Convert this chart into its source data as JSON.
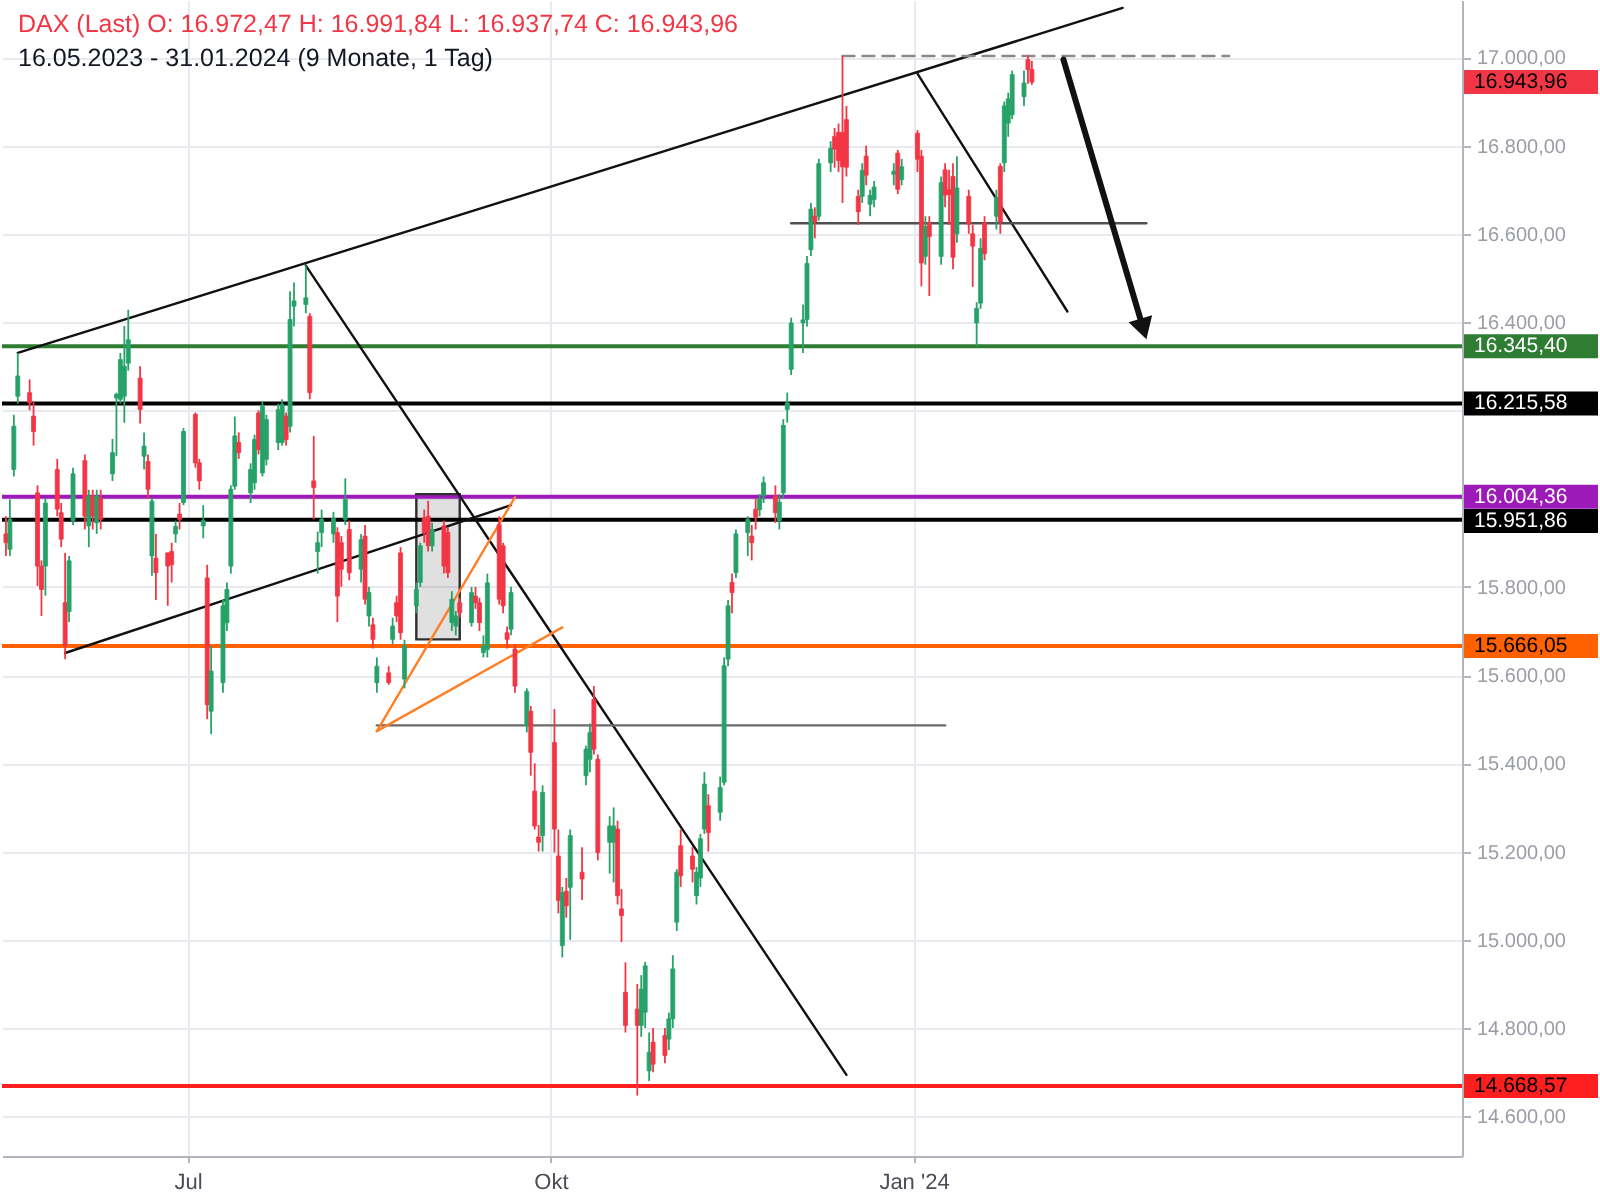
{
  "chart_data": {
    "type": "candlestick",
    "title": "DAX (Last)  O: 16.972,47  H: 16.991,84  L: 16.937,74  C: 16.943,96",
    "subtitle": "16.05.2023 - 31.01.2024  (9 Monate, 1 Tag)",
    "x": [
      "2023-05-16",
      "2023-05-17",
      "2023-05-18",
      "2023-05-19",
      "2023-05-22",
      "2023-05-23",
      "2023-05-24",
      "2023-05-25",
      "2023-05-26",
      "2023-05-29",
      "2023-05-30",
      "2023-05-31",
      "2023-06-01",
      "2023-06-02",
      "2023-06-05",
      "2023-06-06",
      "2023-06-07",
      "2023-06-08",
      "2023-06-09",
      "2023-06-12",
      "2023-06-13",
      "2023-06-14",
      "2023-06-15",
      "2023-06-16",
      "2023-06-19",
      "2023-06-20",
      "2023-06-21",
      "2023-06-22",
      "2023-06-23",
      "2023-06-26",
      "2023-06-27",
      "2023-06-28",
      "2023-06-29",
      "2023-06-30",
      "2023-07-03",
      "2023-07-04",
      "2023-07-05",
      "2023-07-06",
      "2023-07-07",
      "2023-07-10",
      "2023-07-11",
      "2023-07-12",
      "2023-07-13",
      "2023-07-14",
      "2023-07-17",
      "2023-07-18",
      "2023-07-19",
      "2023-07-20",
      "2023-07-21",
      "2023-07-24",
      "2023-07-25",
      "2023-07-26",
      "2023-07-27",
      "2023-07-28",
      "2023-07-31",
      "2023-08-01",
      "2023-08-02",
      "2023-08-03",
      "2023-08-04",
      "2023-08-07",
      "2023-08-08",
      "2023-08-09",
      "2023-08-10",
      "2023-08-11",
      "2023-08-14",
      "2023-08-15",
      "2023-08-16",
      "2023-08-17",
      "2023-08-18",
      "2023-08-21",
      "2023-08-22",
      "2023-08-23",
      "2023-08-24",
      "2023-08-25",
      "2023-08-28",
      "2023-08-29",
      "2023-08-30",
      "2023-08-31",
      "2023-09-01",
      "2023-09-04",
      "2023-09-05",
      "2023-09-06",
      "2023-09-07",
      "2023-09-08",
      "2023-09-11",
      "2023-09-12",
      "2023-09-13",
      "2023-09-14",
      "2023-09-15",
      "2023-09-18",
      "2023-09-19",
      "2023-09-20",
      "2023-09-21",
      "2023-09-22",
      "2023-09-25",
      "2023-09-26",
      "2023-09-27",
      "2023-09-28",
      "2023-09-29",
      "2023-10-02",
      "2023-10-03",
      "2023-10-04",
      "2023-10-05",
      "2023-10-06",
      "2023-10-09",
      "2023-10-10",
      "2023-10-11",
      "2023-10-12",
      "2023-10-13",
      "2023-10-16",
      "2023-10-17",
      "2023-10-18",
      "2023-10-19",
      "2023-10-20",
      "2023-10-23",
      "2023-10-24",
      "2023-10-25",
      "2023-10-26",
      "2023-10-27",
      "2023-10-30",
      "2023-10-31",
      "2023-11-01",
      "2023-11-02",
      "2023-11-03",
      "2023-11-06",
      "2023-11-07",
      "2023-11-08",
      "2023-11-09",
      "2023-11-10",
      "2023-11-13",
      "2023-11-14",
      "2023-11-15",
      "2023-11-16",
      "2023-11-17",
      "2023-11-20",
      "2023-11-21",
      "2023-11-22",
      "2023-11-23",
      "2023-11-24",
      "2023-11-27",
      "2023-11-28",
      "2023-11-29",
      "2023-11-30",
      "2023-12-01",
      "2023-12-04",
      "2023-12-05",
      "2023-12-06",
      "2023-12-07",
      "2023-12-08",
      "2023-12-11",
      "2023-12-12",
      "2023-12-13",
      "2023-12-14",
      "2023-12-15",
      "2023-12-18",
      "2023-12-19",
      "2023-12-20",
      "2023-12-21",
      "2023-12-22",
      "2023-12-27",
      "2023-12-28",
      "2023-12-29",
      "2024-01-02",
      "2024-01-03",
      "2024-01-04",
      "2024-01-05",
      "2024-01-08",
      "2024-01-09",
      "2024-01-10",
      "2024-01-11",
      "2024-01-12",
      "2024-01-15",
      "2024-01-16",
      "2024-01-17",
      "2024-01-18",
      "2024-01-19",
      "2024-01-22",
      "2024-01-23",
      "2024-01-24",
      "2024-01-25",
      "2024-01-26",
      "2024-01-29",
      "2024-01-30",
      "2024-01-31"
    ],
    "ohlc": [
      [
        15920,
        15960,
        15870,
        15900
      ],
      [
        15885,
        15998,
        15870,
        15953
      ],
      [
        16066,
        16190,
        16050,
        16164
      ],
      [
        16232,
        16330,
        16215,
        16278
      ],
      [
        16240,
        16270,
        16200,
        16217
      ],
      [
        16187,
        16220,
        16120,
        16152
      ],
      [
        16013,
        16030,
        15802,
        15847
      ],
      [
        15847,
        15860,
        15734,
        15794
      ],
      [
        15847,
        16000,
        15780,
        15990
      ],
      [
        16066,
        16090,
        15960,
        15976
      ],
      [
        15968,
        15990,
        15890,
        15908
      ],
      [
        15764,
        15877,
        15636,
        15666
      ],
      [
        15744,
        15870,
        15720,
        15859
      ],
      [
        15950,
        16070,
        15940,
        16056
      ],
      [
        16086,
        16100,
        15930,
        15960
      ],
      [
        15938,
        16020,
        15890,
        16006
      ],
      [
        16006,
        16020,
        15930,
        15960
      ],
      [
        15945,
        16020,
        15920,
        16006
      ],
      [
        16000,
        16020,
        15930,
        15953
      ],
      [
        16056,
        16135,
        16040,
        16104
      ],
      [
        16228,
        16240,
        16096,
        16236
      ],
      [
        16225,
        16330,
        16215,
        16315
      ],
      [
        16232,
        16391,
        16172,
        16300
      ],
      [
        16307,
        16428,
        16290,
        16360
      ],
      [
        16273,
        16300,
        16170,
        16202
      ],
      [
        16096,
        16150,
        16066,
        16119
      ],
      [
        16084,
        16100,
        16000,
        16021
      ],
      [
        15870,
        16000,
        15825,
        15994
      ],
      [
        15865,
        15920,
        15770,
        15832
      ],
      [
        15877,
        15877,
        15757,
        15847
      ],
      [
        15880,
        15900,
        15810,
        15850
      ],
      [
        15920,
        15950,
        15900,
        15937
      ],
      [
        15965,
        15990,
        15930,
        15953
      ],
      [
        15991,
        16160,
        15985,
        16152
      ],
      [
        16191,
        16195,
        16070,
        16081
      ],
      [
        16081,
        16090,
        16020,
        16040
      ],
      [
        15938,
        15985,
        15910,
        15950
      ],
      [
        15820,
        15850,
        15500,
        15533
      ],
      [
        15518,
        15666,
        15466,
        15609
      ],
      [
        15583,
        15770,
        15560,
        15757
      ],
      [
        15719,
        15810,
        15700,
        15794
      ],
      [
        15847,
        16030,
        15830,
        16021
      ],
      [
        16028,
        16186,
        16020,
        16142
      ],
      [
        16127,
        16150,
        16090,
        16104
      ],
      [
        16013,
        16080,
        15990,
        16066
      ],
      [
        16036,
        16145,
        16020,
        16134
      ],
      [
        16194,
        16200,
        16100,
        16111
      ],
      [
        16058,
        16220,
        16050,
        16209
      ],
      [
        16089,
        16190,
        16075,
        16179
      ],
      [
        16127,
        16215,
        16110,
        16202
      ],
      [
        16127,
        16225,
        16120,
        16213
      ],
      [
        16187,
        16195,
        16120,
        16134
      ],
      [
        16164,
        16470,
        16150,
        16406
      ],
      [
        16436,
        16490,
        16390,
        16448
      ],
      [
        16440,
        16528,
        16420,
        16455
      ],
      [
        16413,
        16420,
        16225,
        16240
      ],
      [
        16040,
        16142,
        15953,
        16025
      ],
      [
        15880,
        15925,
        15830,
        15900
      ],
      [
        15923,
        15975,
        15890,
        15953
      ],
      [
        15920,
        15970,
        15900,
        15955
      ],
      [
        15923,
        15935,
        15720,
        15779
      ],
      [
        15900,
        15915,
        15800,
        15840
      ],
      [
        15953,
        16046,
        15940,
        15998
      ],
      [
        15930,
        15950,
        15815,
        15832
      ],
      [
        15840,
        15920,
        15810,
        15907
      ],
      [
        15915,
        15940,
        15760,
        15772
      ],
      [
        15734,
        15800,
        15710,
        15787
      ],
      [
        15714,
        15730,
        15660,
        15681
      ],
      [
        15583,
        15640,
        15560,
        15620
      ],
      [
        15605,
        15620,
        15578,
        15583
      ],
      [
        15681,
        15730,
        15670,
        15711
      ],
      [
        15764,
        15780,
        15720,
        15734
      ],
      [
        15877,
        15890,
        15680,
        15696
      ],
      [
        15591,
        15680,
        15570,
        15666
      ],
      [
        15757,
        15810,
        15740,
        15794
      ],
      [
        15810,
        15900,
        15800,
        15893
      ],
      [
        15956,
        15975,
        15900,
        15923
      ],
      [
        15960,
        15995,
        15880,
        15893
      ],
      [
        15893,
        15945,
        15880,
        15930
      ],
      [
        15938,
        15950,
        15830,
        15847
      ],
      [
        15923,
        15935,
        15820,
        15832
      ],
      [
        15719,
        15790,
        15700,
        15772
      ],
      [
        15711,
        15745,
        15690,
        15734
      ],
      [
        15764,
        15775,
        15730,
        15742
      ],
      [
        15719,
        15800,
        15710,
        15787
      ],
      [
        15779,
        15800,
        15750,
        15764
      ],
      [
        15764,
        15775,
        15700,
        15719
      ],
      [
        15651,
        15690,
        15640,
        15666
      ],
      [
        15658,
        15830,
        15640,
        15809
      ],
      [
        15941,
        15960,
        15760,
        15772
      ],
      [
        15893,
        15900,
        15740,
        15757
      ],
      [
        15696,
        15710,
        15660,
        15681
      ],
      [
        15704,
        15800,
        15690,
        15787
      ],
      [
        15659,
        15670,
        15560,
        15575
      ],
      [
        15485,
        15570,
        15470,
        15563
      ],
      [
        15518,
        15530,
        15372,
        15425
      ],
      [
        15337,
        15400,
        15250,
        15258
      ],
      [
        15233,
        15260,
        15200,
        15221
      ],
      [
        15236,
        15350,
        15200,
        15334
      ],
      [
        15447,
        15523,
        15198,
        15251
      ],
      [
        15190,
        15250,
        15060,
        15089
      ],
      [
        14987,
        15120,
        14960,
        15107
      ],
      [
        15110,
        15140,
        15050,
        15077
      ],
      [
        15119,
        15250,
        15000,
        15236
      ],
      [
        15153,
        15210,
        15090,
        15138
      ],
      [
        15372,
        15440,
        15350,
        15432
      ],
      [
        15409,
        15490,
        15380,
        15470
      ],
      [
        15545,
        15575,
        15420,
        15432
      ],
      [
        15409,
        15420,
        15180,
        15198
      ],
      [
        15221,
        15280,
        15150,
        15258
      ],
      [
        15221,
        15300,
        15130,
        15258
      ],
      [
        15251,
        15270,
        15080,
        15100
      ],
      [
        15070,
        15115,
        14995,
        15055
      ],
      [
        14881,
        14949,
        14790,
        14806
      ],
      [
        14843,
        14900,
        14647,
        14806
      ],
      [
        14806,
        14920,
        14780,
        14888
      ],
      [
        14836,
        14950,
        14800,
        14941
      ],
      [
        14703,
        14790,
        14680,
        14745
      ],
      [
        14768,
        14800,
        14700,
        14718
      ],
      [
        14783,
        14800,
        14720,
        14738
      ],
      [
        14775,
        14835,
        14750,
        14821
      ],
      [
        14821,
        14965,
        14800,
        14934
      ],
      [
        15040,
        15160,
        15020,
        15153
      ],
      [
        15213,
        15250,
        15120,
        15145
      ],
      [
        15190,
        15210,
        15130,
        15160
      ],
      [
        15100,
        15165,
        15080,
        15153
      ],
      [
        15140,
        15240,
        15120,
        15229
      ],
      [
        15251,
        15380,
        15240,
        15353
      ],
      [
        15304,
        15330,
        15200,
        15243
      ],
      [
        15289,
        15370,
        15270,
        15345
      ],
      [
        15357,
        15640,
        15350,
        15621
      ],
      [
        15636,
        15770,
        15620,
        15757
      ],
      [
        15810,
        15830,
        15740,
        15787
      ],
      [
        15832,
        15930,
        15820,
        15920
      ],
      [
        15923,
        15960,
        15870,
        15953
      ],
      [
        15915,
        15940,
        15860,
        15900
      ],
      [
        15976,
        16000,
        15930,
        15958
      ],
      [
        15975,
        16010,
        15960,
        16000
      ],
      [
        16006,
        16050,
        15990,
        16036
      ],
      [
        16006,
        16030,
        15945,
        15968
      ],
      [
        15950,
        16010,
        15930,
        15992
      ],
      [
        16013,
        16180,
        16000,
        16166
      ],
      [
        16202,
        16240,
        16172,
        16217
      ],
      [
        16293,
        16410,
        16280,
        16398
      ],
      [
        16398,
        16440,
        16330,
        16405
      ],
      [
        16406,
        16550,
        16390,
        16533
      ],
      [
        16564,
        16670,
        16550,
        16656
      ],
      [
        16640,
        16660,
        16590,
        16628
      ],
      [
        16640,
        16770,
        16630,
        16759
      ],
      [
        16761,
        16810,
        16740,
        16794
      ],
      [
        16821,
        16840,
        16750,
        16792
      ],
      [
        16830,
        16850,
        16740,
        16766
      ],
      [
        16830,
        17003,
        16670,
        16752
      ],
      [
        16859,
        16890,
        16730,
        16751
      ],
      [
        16685,
        16700,
        16620,
        16650
      ],
      [
        16685,
        16760,
        16670,
        16744
      ],
      [
        16776,
        16800,
        16710,
        16733
      ],
      [
        16667,
        16700,
        16640,
        16687
      ],
      [
        16678,
        16720,
        16660,
        16706
      ],
      [
        16735,
        16760,
        16710,
        16742
      ],
      [
        16783,
        16790,
        16690,
        16701
      ],
      [
        16723,
        16770,
        16710,
        16752
      ],
      [
        16828,
        16835,
        16740,
        16769
      ],
      [
        16776,
        16790,
        16481,
        16534
      ],
      [
        16549,
        16640,
        16530,
        16617
      ],
      [
        16625,
        16640,
        16459,
        16594
      ],
      [
        16549,
        16730,
        16530,
        16716
      ],
      [
        16745,
        16760,
        16660,
        16688
      ],
      [
        16700,
        16745,
        16620,
        16689
      ],
      [
        16730,
        16760,
        16520,
        16547
      ],
      [
        16600,
        16776,
        16580,
        16704
      ],
      [
        16685,
        16700,
        16600,
        16622
      ],
      [
        16600,
        16620,
        16480,
        16572
      ],
      [
        16398,
        16445,
        16345,
        16431
      ],
      [
        16443,
        16590,
        16430,
        16567
      ],
      [
        16625,
        16640,
        16540,
        16555
      ],
      [
        16640,
        16700,
        16610,
        16683
      ],
      [
        16753,
        16760,
        16600,
        16627
      ],
      [
        16761,
        16900,
        16740,
        16890
      ],
      [
        16851,
        16920,
        16820,
        16906
      ],
      [
        16870,
        16970,
        16860,
        16961
      ],
      [
        16911,
        16970,
        16890,
        16942
      ],
      [
        16995,
        17005,
        16940,
        16972
      ],
      [
        16972.47,
        16991.84,
        16937.74,
        16943.96
      ]
    ],
    "colors": [
      "#f23645",
      "#26a269",
      "#26a269",
      "#26a269",
      "#f23645",
      "#f23645",
      "#f23645",
      "#f23645",
      "#26a269",
      "#f23645",
      "#f23645",
      "#f23645",
      "#26a269",
      "#26a269",
      "#f23645",
      "#26a269",
      "#f23645",
      "#26a269",
      "#f23645",
      "#26a269",
      "#26a269",
      "#26a269",
      "#26a269",
      "#26a269",
      "#f23645",
      "#26a269",
      "#f23645",
      "#26a269",
      "#f23645",
      "#f23645",
      "#f23645",
      "#26a269",
      "#f23645",
      "#26a269",
      "#f23645",
      "#f23645",
      "#26a269",
      "#f23645",
      "#26a269",
      "#26a269",
      "#26a269",
      "#26a269",
      "#26a269",
      "#f23645",
      "#26a269",
      "#26a269",
      "#f23645",
      "#26a269",
      "#26a269",
      "#26a269",
      "#26a269",
      "#f23645",
      "#26a269",
      "#26a269",
      "#26a269",
      "#f23645",
      "#f23645",
      "#26a269",
      "#26a269",
      "#26a269",
      "#f23645",
      "#f23645",
      "#26a269",
      "#f23645",
      "#26a269",
      "#f23645",
      "#26a269",
      "#f23645",
      "#26a269",
      "#f23645",
      "#26a269",
      "#f23645",
      "#f23645",
      "#26a269",
      "#26a269",
      "#26a269",
      "#f23645",
      "#f23645",
      "#26a269",
      "#f23645",
      "#f23645",
      "#26a269",
      "#26a269",
      "#f23645",
      "#26a269",
      "#f23645",
      "#f23645",
      "#26a269",
      "#26a269",
      "#f23645",
      "#f23645",
      "#f23645",
      "#26a269",
      "#f23645",
      "#26a269",
      "#f23645",
      "#f23645",
      "#f23645",
      "#26a269",
      "#f23645",
      "#f23645",
      "#26a269",
      "#f23645",
      "#26a269",
      "#f23645",
      "#26a269",
      "#26a269",
      "#f23645",
      "#f23645",
      "#26a269",
      "#26a269",
      "#f23645",
      "#f23645",
      "#f23645",
      "#f23645",
      "#26a269",
      "#26a269",
      "#26a269",
      "#f23645",
      "#f23645",
      "#26a269",
      "#26a269",
      "#26a269",
      "#f23645",
      "#f23645",
      "#26a269",
      "#26a269",
      "#26a269",
      "#f23645",
      "#26a269",
      "#26a269",
      "#26a269",
      "#f23645",
      "#26a269",
      "#26a269",
      "#f23645",
      "#f23645",
      "#26a269",
      "#26a269",
      "#f23645",
      "#26a269",
      "#26a269",
      "#26a269",
      "#26a269",
      "#26a269",
      "#26a269",
      "#26a269",
      "#f23645",
      "#26a269",
      "#26a269",
      "#f23645",
      "#f23645",
      "#f23645",
      "#f23645",
      "#f23645",
      "#26a269",
      "#f23645",
      "#26a269",
      "#26a269",
      "#26a269",
      "#f23645",
      "#26a269",
      "#f23645",
      "#f23645",
      "#26a269",
      "#f23645",
      "#26a269",
      "#f23645",
      "#f23645",
      "#f23645",
      "#26a269",
      "#f23645",
      "#f23645",
      "#26a269",
      "#26a269",
      "#f23645",
      "#26a269",
      "#f23645",
      "#26a269",
      "#26a269",
      "#26a269",
      "#26a269",
      "#f23645",
      "#f23645"
    ],
    "xlim": [
      "2023-05-15",
      "2024-05-19"
    ],
    "xticks": [
      {
        "value": "2023-07-01",
        "label": "Jul"
      },
      {
        "value": "2023-10-01",
        "label": "Okt"
      },
      {
        "value": "2024-01-01",
        "label": "Jan '24"
      }
    ],
    "ylim": [
      14510,
      17130
    ],
    "yticks": [
      {
        "value": 14600,
        "label": "14.600,00"
      },
      {
        "value": 14800,
        "label": "14.800,00"
      },
      {
        "value": 15000,
        "label": "15.000,00"
      },
      {
        "value": 15200,
        "label": "15.200,00"
      },
      {
        "value": 15400,
        "label": "15.400,00"
      },
      {
        "value": 15600,
        "label": "15.600,00"
      },
      {
        "value": 15800,
        "label": "15.800,00"
      },
      {
        "value": 16000,
        "label": null
      },
      {
        "value": 16200,
        "label": null
      },
      {
        "value": 16400,
        "label": "16.400,00"
      },
      {
        "value": 16600,
        "label": "16.600,00"
      },
      {
        "value": 16800,
        "label": "16.800,00"
      },
      {
        "value": 17000,
        "label": "17.000,00"
      }
    ],
    "grid": true,
    "ref_lines": [
      {
        "axis": "y",
        "value": 16345.4,
        "label": "16.345,40",
        "color": "#2e7d32"
      },
      {
        "axis": "y",
        "value": 16215.58,
        "label": "16.215,58",
        "color": "#000000"
      },
      {
        "axis": "y",
        "value": 16004.36,
        "label": "16.004,36",
        "color": "#9c1ab8"
      },
      {
        "axis": "y",
        "value": 15951.86,
        "label": "15.951,86",
        "color": "#000000"
      },
      {
        "axis": "y",
        "value": 15666.05,
        "label": "15.666,05",
        "color": "#ff6000"
      },
      {
        "axis": "y",
        "value": 14668.57,
        "label": "14.668,57",
        "color": "#ff1f1f"
      }
    ],
    "annotations": [
      "16.943,96"
    ],
    "series": [
      {
        "type": "line",
        "color": "#2f2f2f",
        "x": [
          "2023-08-28",
          "2023-09-08"
        ],
        "values": [
          16010,
          16010
        ],
        "lower": [
          15681,
          15681
        ],
        "upper": [
          16010,
          16010
        ]
      },
      {
        "type": "line",
        "color": "#111111",
        "x": [
          "2023-05-19",
          "2024-02-23"
        ],
        "values": [
          16330,
          17112
        ]
      },
      {
        "type": "line",
        "color": "#111111",
        "x": [
          "2023-05-31",
          "2023-09-21"
        ],
        "values": [
          15650,
          15985
        ]
      },
      {
        "type": "line",
        "color": "#111111",
        "x": [
          "2023-07-31",
          "2023-12-15"
        ],
        "values": [
          16528,
          14694
        ]
      },
      {
        "type": "line",
        "color": "#111111",
        "x": [
          "2024-01-02",
          "2024-02-09"
        ],
        "values": [
          16963,
          16424
        ]
      },
      {
        "type": "line",
        "color": "#505050",
        "x": [
          "2023-12-01",
          "2024-02-29"
        ],
        "values": [
          16624,
          16624
        ]
      },
      {
        "type": "line",
        "color": "#6a6a6a",
        "x": [
          "2023-08-18",
          "2024-01-09"
        ],
        "values": [
          15486,
          15486
        ]
      },
      {
        "type": "line",
        "color": "#8a8a8a",
        "line_style": "dashed",
        "x": [
          "2023-12-14",
          "2024-03-21"
        ],
        "values": [
          17003,
          17003
        ]
      },
      {
        "type": "line",
        "color": "#ff7f27",
        "x": [
          "2023-08-18",
          "2023-09-22"
        ],
        "values": [
          15473,
          16003
        ]
      },
      {
        "type": "line",
        "color": "#ff7f27",
        "x": [
          "2023-08-18",
          "2023-10-04"
        ],
        "values": [
          15473,
          15708
        ]
      },
      {
        "type": "line",
        "color": "#111111",
        "marker": "triangle",
        "x": [
          "2024-02-08",
          "2024-02-28"
        ],
        "values": [
          16995,
          16392
        ]
      }
    ]
  }
}
